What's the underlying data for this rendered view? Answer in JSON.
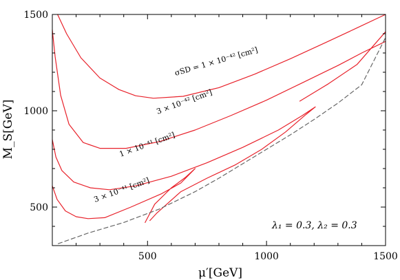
{
  "chart_data": {
    "type": "line",
    "xlabel": "μ′[GeV]",
    "ylabel": "M_S[GeV]",
    "xlim": [
      100,
      1500
    ],
    "ylim": [
      300,
      1500
    ],
    "x_ticks": [
      500,
      1000,
      1500
    ],
    "y_ticks": [
      500,
      1000,
      1500
    ],
    "x_tick_labels": [
      "500",
      "1000",
      "1500"
    ],
    "y_tick_labels": [
      "500",
      "1000",
      "1500"
    ],
    "grid": false,
    "annotation": "λ₁ = 0.3,    λ₂ = 0.3",
    "colors": {
      "curves": "#e8212a",
      "boundary": "#666666"
    },
    "series": [
      {
        "name": "σSD = 1 × 10⁻⁴² [cm²]",
        "style": "solid",
        "points": [
          [
            122,
            1500
          ],
          [
            160,
            1400
          ],
          [
            220,
            1275
          ],
          [
            300,
            1170
          ],
          [
            380,
            1110
          ],
          [
            450,
            1078
          ],
          [
            525,
            1065
          ],
          [
            650,
            1075
          ],
          [
            800,
            1120
          ],
          [
            950,
            1190
          ],
          [
            1100,
            1270
          ],
          [
            1250,
            1355
          ],
          [
            1380,
            1430
          ],
          [
            1500,
            1500
          ]
        ]
      },
      {
        "name": "3 × 10⁻⁴² [cm²]",
        "style": "solid",
        "points": [
          [
            100,
            1420
          ],
          [
            112,
            1280
          ],
          [
            135,
            1080
          ],
          [
            170,
            930
          ],
          [
            230,
            835
          ],
          [
            300,
            805
          ],
          [
            410,
            805
          ],
          [
            550,
            840
          ],
          [
            700,
            900
          ],
          [
            850,
            975
          ],
          [
            1000,
            1055
          ],
          [
            1150,
            1145
          ],
          [
            1250,
            1205
          ],
          [
            1300,
            1235
          ],
          [
            1400,
            1300
          ],
          [
            1500,
            1360
          ]
        ]
      },
      {
        "name": "1 × 10⁻⁴¹ [cm²]",
        "style": "solid",
        "points": [
          [
            100,
            850
          ],
          [
            115,
            760
          ],
          [
            140,
            690
          ],
          [
            190,
            630
          ],
          [
            260,
            600
          ],
          [
            340,
            590
          ],
          [
            450,
            610
          ],
          [
            600,
            660
          ],
          [
            750,
            730
          ],
          [
            900,
            810
          ],
          [
            1050,
            900
          ],
          [
            1150,
            975
          ],
          [
            1205,
            1020
          ],
          [
            1165,
            980
          ],
          [
            1080,
            890
          ],
          [
            980,
            800
          ],
          [
            870,
            720
          ],
          [
            750,
            650
          ],
          [
            640,
            580
          ],
          [
            540,
            470
          ],
          [
            510,
            430
          ]
        ]
      },
      {
        "name": "3 × 10⁻⁴¹ [cm²]",
        "style": "solid",
        "points": [
          [
            100,
            610
          ],
          [
            120,
            540
          ],
          [
            155,
            480
          ],
          [
            200,
            450
          ],
          [
            250,
            440
          ],
          [
            320,
            445
          ],
          [
            430,
            500
          ],
          [
            560,
            570
          ],
          [
            640,
            625
          ],
          [
            700,
            700
          ],
          [
            660,
            655
          ],
          [
            600,
            600
          ],
          [
            530,
            515
          ],
          [
            490,
            420
          ]
        ]
      },
      {
        "name": "",
        "style": "solid",
        "points": [
          [
            1140,
            1050
          ],
          [
            1260,
            1140
          ],
          [
            1380,
            1240
          ],
          [
            1500,
            1410
          ]
        ]
      },
      {
        "name": "",
        "style": "dashed",
        "points": [
          [
            125,
            310
          ],
          [
            250,
            365
          ],
          [
            400,
            420
          ],
          [
            550,
            490
          ],
          [
            700,
            580
          ],
          [
            800,
            650
          ],
          [
            900,
            725
          ],
          [
            1000,
            800
          ],
          [
            1100,
            875
          ],
          [
            1200,
            955
          ],
          [
            1300,
            1040
          ],
          [
            1400,
            1135
          ],
          [
            1500,
            1380
          ]
        ]
      }
    ]
  }
}
